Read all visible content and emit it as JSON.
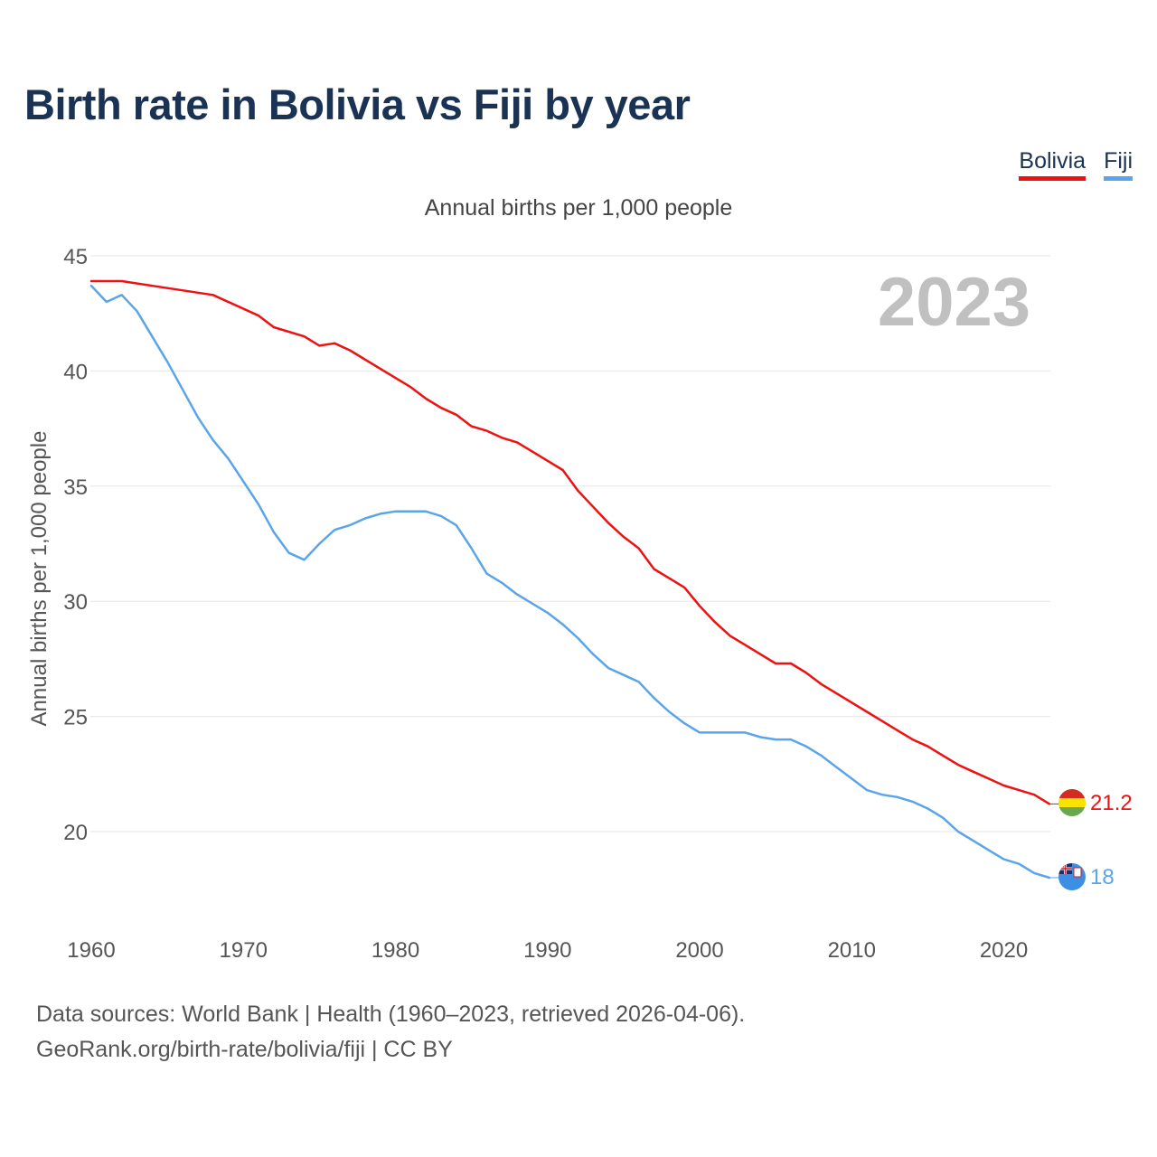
{
  "title": "Birth rate in Bolivia vs Fiji by year",
  "subtitle": "Annual births per 1,000 people",
  "legend": [
    {
      "name": "Bolivia",
      "color": "#ee1111"
    },
    {
      "name": "Fiji",
      "color": "#5aa5ea"
    }
  ],
  "year_watermark": "2023",
  "end_labels": {
    "bolivia": "21.2",
    "fiji": "18"
  },
  "source_line1": "Data sources: World Bank | Health (1960–2023, retrieved 2026-04-06).",
  "source_line2": "GeoRank.org/birth-rate/bolivia/fiji | CC BY",
  "chart_data": {
    "type": "line",
    "title": "Birth rate in Bolivia vs Fiji by year",
    "ylabel": "Annual births per 1,000 people",
    "xlabel": "",
    "xlim": [
      1960,
      2023
    ],
    "ylim": [
      17,
      45
    ],
    "x_ticks": [
      1960,
      1970,
      1980,
      1990,
      2000,
      2010,
      2020
    ],
    "y_ticks": [
      20,
      25,
      30,
      35,
      40,
      45
    ],
    "series": [
      {
        "name": "Bolivia",
        "color": "#ee1111",
        "x": [
          1960,
          1962,
          1965,
          1968,
          1971,
          1972,
          1974,
          1975,
          1976,
          1977,
          1979,
          1981,
          1982,
          1983,
          1984,
          1985,
          1986,
          1987,
          1988,
          1989,
          1990,
          1991,
          1992,
          1993,
          1994,
          1995,
          1996,
          1997,
          1998,
          1999,
          2000,
          2001,
          2002,
          2003,
          2004,
          2005,
          2006,
          2007,
          2008,
          2009,
          2010,
          2011,
          2012,
          2013,
          2014,
          2015,
          2016,
          2017,
          2018,
          2019,
          2020,
          2021,
          2022,
          2023
        ],
        "values": [
          43.9,
          43.9,
          43.6,
          43.3,
          42.4,
          41.9,
          41.5,
          41.1,
          41.2,
          40.9,
          40.1,
          39.3,
          38.8,
          38.4,
          38.1,
          37.6,
          37.4,
          37.1,
          36.9,
          36.5,
          36.1,
          35.7,
          34.8,
          34.1,
          33.4,
          32.8,
          32.3,
          31.4,
          31.0,
          30.6,
          29.8,
          29.1,
          28.5,
          28.1,
          27.7,
          27.3,
          27.3,
          26.9,
          26.4,
          26.0,
          25.6,
          25.2,
          24.8,
          24.4,
          24.0,
          23.7,
          23.3,
          22.9,
          22.6,
          22.3,
          22.0,
          21.8,
          21.6,
          21.2
        ]
      },
      {
        "name": "Fiji",
        "color": "#5aa5ea",
        "x": [
          1960,
          1961,
          1962,
          1963,
          1964,
          1965,
          1966,
          1967,
          1968,
          1969,
          1970,
          1971,
          1972,
          1973,
          1974,
          1975,
          1976,
          1977,
          1978,
          1979,
          1980,
          1981,
          1982,
          1983,
          1984,
          1985,
          1986,
          1987,
          1988,
          1989,
          1990,
          1991,
          1992,
          1993,
          1994,
          1995,
          1996,
          1997,
          1998,
          1999,
          2000,
          2001,
          2002,
          2003,
          2004,
          2005,
          2006,
          2007,
          2008,
          2009,
          2010,
          2011,
          2012,
          2013,
          2014,
          2015,
          2016,
          2017,
          2018,
          2019,
          2020,
          2021,
          2022,
          2023
        ],
        "values": [
          43.7,
          43.0,
          43.3,
          42.6,
          41.5,
          40.4,
          39.2,
          38.0,
          37.0,
          36.2,
          35.2,
          34.2,
          33.0,
          32.1,
          31.8,
          32.5,
          33.1,
          33.3,
          33.6,
          33.8,
          33.9,
          33.9,
          33.9,
          33.7,
          33.3,
          32.3,
          31.2,
          30.8,
          30.3,
          29.9,
          29.5,
          29.0,
          28.4,
          27.7,
          27.1,
          26.8,
          26.5,
          25.8,
          25.2,
          24.7,
          24.3,
          24.3,
          24.3,
          24.3,
          24.1,
          24.0,
          24.0,
          23.7,
          23.3,
          22.8,
          22.3,
          21.8,
          21.6,
          21.5,
          21.3,
          21.0,
          20.6,
          20.0,
          19.6,
          19.2,
          18.8,
          18.6,
          18.2,
          18.0
        ]
      }
    ]
  }
}
